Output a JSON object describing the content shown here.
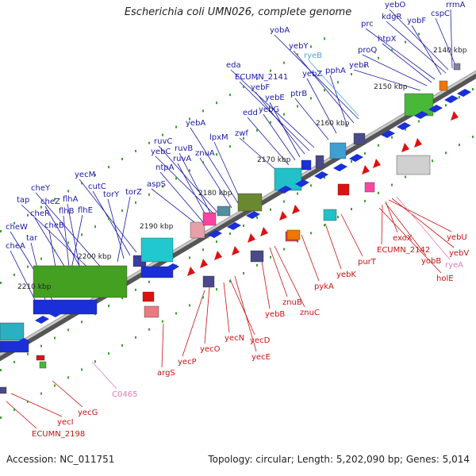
{
  "title": "Escherichia coli UMN026, complete genome",
  "footer": {
    "accession": "Accession: NC_011751",
    "summary": "Topology: circular; Length: 5,202,090 bp; Genes: 5,014"
  },
  "colors": {
    "forward_label": "#1a1aa8",
    "reverse_label": "#cc1111",
    "rna_label": "#e87ab0",
    "trna_label": "#4aa8d8",
    "backbone": "#777777"
  },
  "ticks": [
    "2140 kbp",
    "2150 kbp",
    "2160 kbp",
    "2170 kbp",
    "2180 kbp",
    "2190 kbp",
    "2200 kbp",
    "2210 kbp"
  ],
  "forward_labels": [
    "yebO",
    "kdgR",
    "rrmA",
    "cspC",
    "yobF",
    "prc",
    "htpX",
    "proQ",
    "yebR",
    "yobA",
    "yebY",
    "pphA",
    "yebZ",
    "ptrB",
    "eda",
    "ECUMN_2141",
    "yebF",
    "yebE",
    "yebG",
    "edd",
    "zwf",
    "yebA",
    "lpxM",
    "ruvC",
    "yebC",
    "ruvB",
    "znuA",
    "ruvA",
    "ntpA",
    "aspS",
    "yecM",
    "cutC",
    "torY",
    "torZ",
    "cheY",
    "tap",
    "cheZ",
    "flhA",
    "cheR",
    "flhB",
    "flhE",
    "cheB",
    "cheW",
    "tar",
    "cheA"
  ],
  "reverse_labels": [
    "exoX",
    "yebU",
    "ECUMN_2142",
    "yebV",
    "purT",
    "yobB",
    "holE",
    "yebK",
    "pykA",
    "znuB",
    "yebB",
    "znuC",
    "yecN",
    "yecD",
    "yecO",
    "yecP",
    "yecE",
    "argS",
    "yecG",
    "yecI",
    "ECUMN_2198"
  ],
  "rna_labels": [
    "ryeA",
    "C0465"
  ],
  "trna_labels": [
    "ryeB"
  ]
}
